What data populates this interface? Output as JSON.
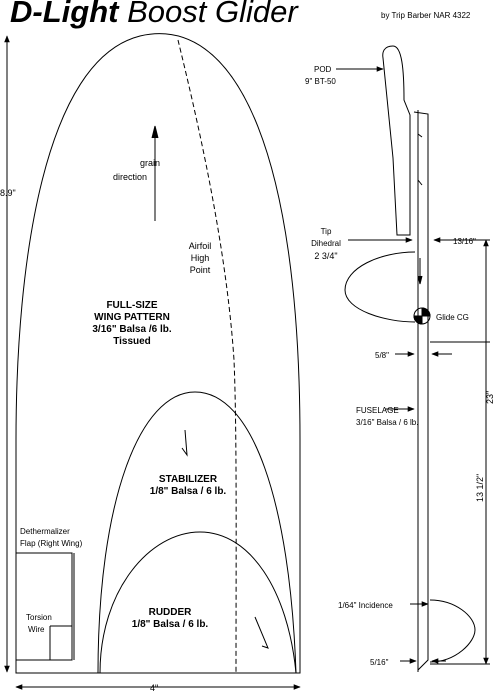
{
  "header": {
    "title_bold": "D-Light",
    "title_rest": " Boost Glider",
    "byline": "by Trip Barber NAR 4322"
  },
  "wing": {
    "name": "FULL-SIZE",
    "name2": "WING PATTERN",
    "material": "3/16\" Balsa /6 lb.",
    "finish": "Tissued",
    "grain_line1": "grain",
    "grain_line2": "direction",
    "airfoil_line1": "Airfoil",
    "airfoil_line2": "High",
    "airfoil_line3": "Point",
    "height_dim": "8.9\"",
    "width_dim": "4\""
  },
  "stabilizer": {
    "name": "STABILIZER",
    "material": "1/8\" Balsa / 6 lb."
  },
  "rudder": {
    "name": "RUDDER",
    "material": "1/8\" Balsa / 6 lb."
  },
  "dethermalizer": {
    "line1": "Dethermalizer",
    "line2": "Flap (Right Wing)",
    "torsion1": "Torsion",
    "torsion2": "Wire"
  },
  "side_view": {
    "pod_line1": "POD",
    "pod_line2": "9\" BT-50",
    "tip_line1": "Tip",
    "tip_line2": "Dihedral",
    "tip_value": "2 3/4\"",
    "dim_13_16": "13/16\"",
    "glide_cg": "Glide CG",
    "dim_5_8": "5/8\"",
    "fuselage": "FUSELAGE",
    "fuselage_material": "3/16\" Balsa / 6 lb.",
    "dim_23": "23\"",
    "dim_13_half": "13 1/2\"",
    "incidence": "1/64\" Incidence",
    "dim_5_16": "5/16\""
  }
}
